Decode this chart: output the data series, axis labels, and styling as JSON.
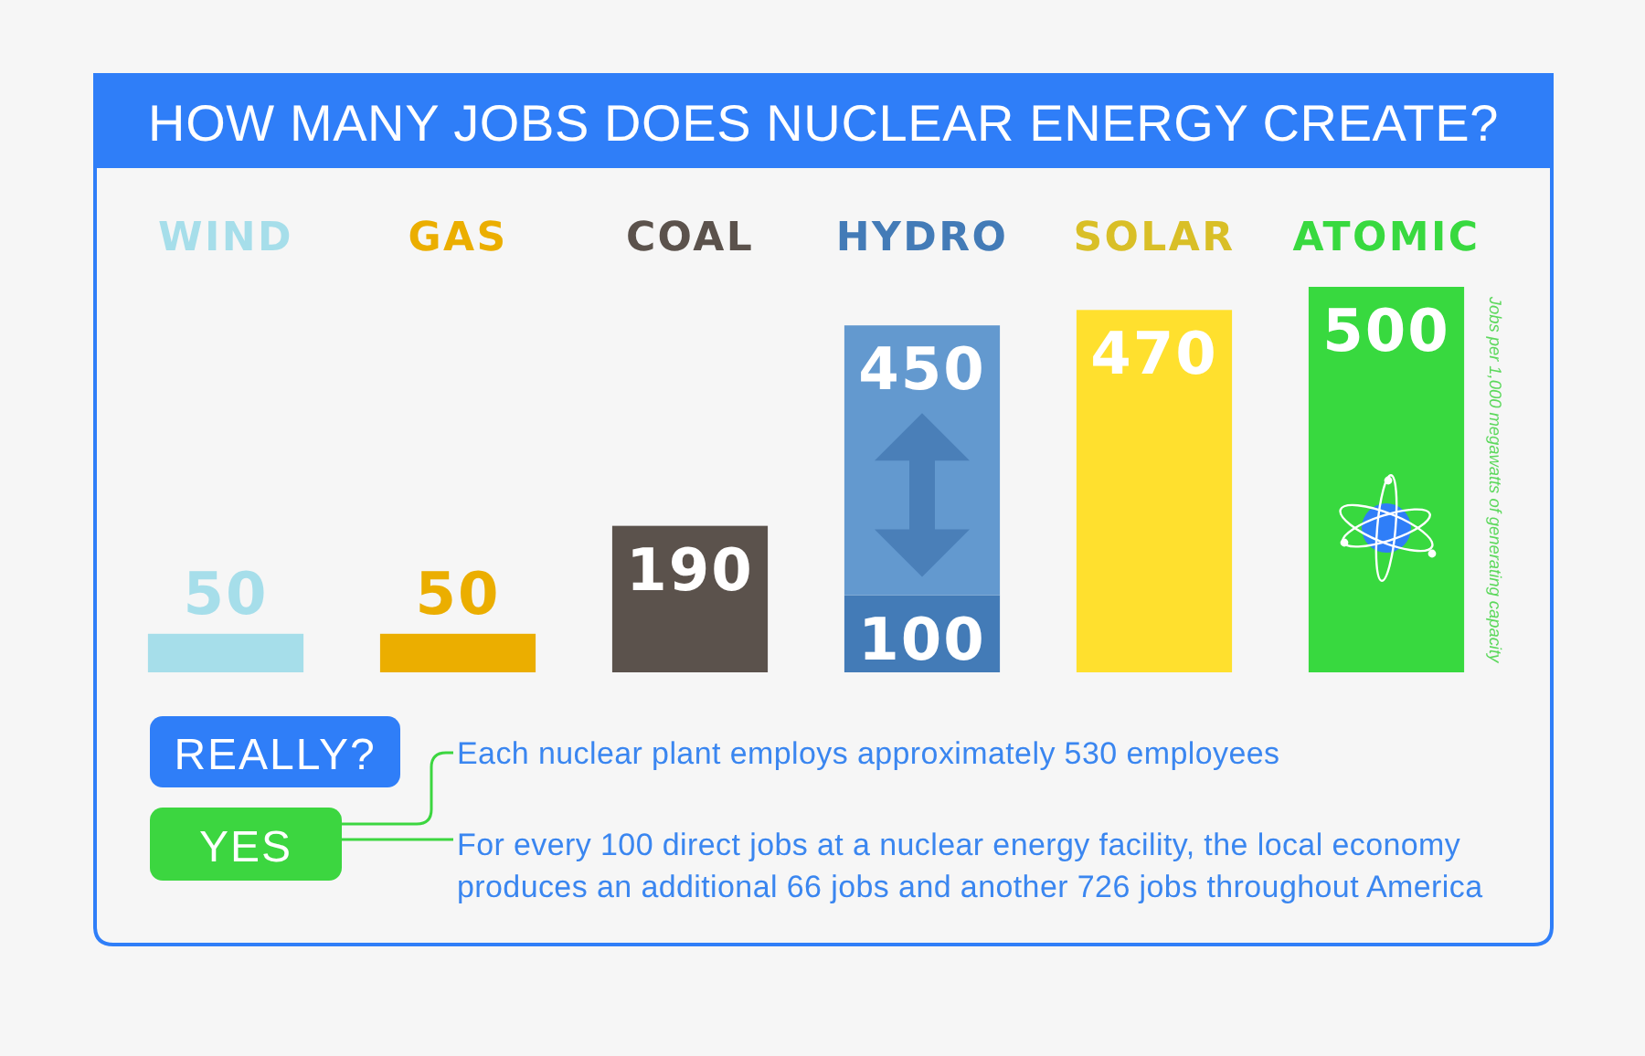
{
  "chart_data": {
    "type": "bar",
    "title": "HOW MANY JOBS DOES NUCLEAR ENERGY CREATE?",
    "ylabel": "Jobs per 1,000 megawatts of generating capacity",
    "categories": [
      "WIND",
      "GAS",
      "COAL",
      "HYDRO",
      "SOLAR",
      "ATOMIC"
    ],
    "stacked": true,
    "series": [
      {
        "colors": [
          "#a6deea",
          "#ebae00",
          "#5b524c",
          "#437bb7",
          "#ffe02e",
          "#38d93f"
        ],
        "values": [
          50,
          50,
          190,
          100,
          470,
          500
        ],
        "value_labels": [
          "50",
          "50",
          "190",
          "100",
          "470",
          "500"
        ]
      },
      {
        "color": "#6399cf",
        "values": [
          null,
          null,
          null,
          350,
          null,
          null
        ]
      }
    ],
    "totals": [
      null,
      null,
      null,
      "450",
      null,
      null
    ],
    "annotations": [
      "REALLY?",
      "YES",
      "Each nuclear plant employs approximately 530 employees",
      "For every 100 direct jobs at a nuclear energy facility, the local economy produces an additional 66 jobs and another 726 jobs throughout America"
    ]
  }
}
